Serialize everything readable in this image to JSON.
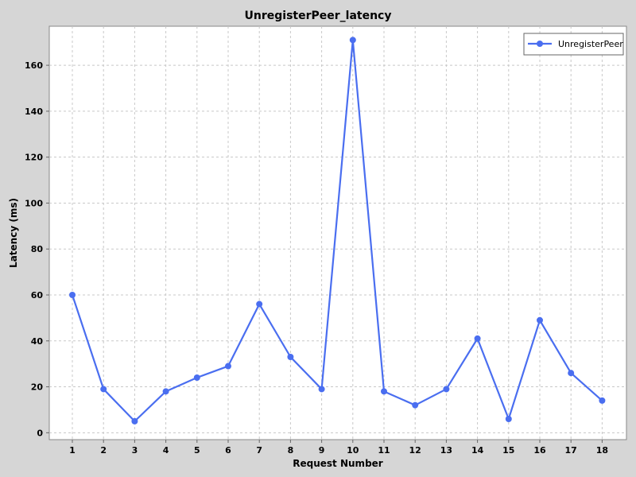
{
  "chart_data": {
    "type": "line",
    "title": "UnregisterPeer_latency",
    "xlabel": "Request Number",
    "ylabel": "Latency (ms)",
    "categories": [
      "1",
      "2",
      "3",
      "4",
      "5",
      "6",
      "7",
      "8",
      "9",
      "10",
      "11",
      "12",
      "13",
      "14",
      "15",
      "16",
      "17",
      "18"
    ],
    "series": [
      {
        "name": "UnregisterPeer",
        "color": "#4a6ef0",
        "values": [
          60,
          19,
          5,
          18,
          24,
          29,
          56,
          33,
          19,
          171,
          18,
          12,
          19,
          41,
          6,
          49,
          26,
          14
        ]
      }
    ],
    "ylim": [
      -3,
      177
    ],
    "yticks": [
      0,
      20,
      40,
      60,
      80,
      100,
      120,
      140,
      160
    ],
    "grid": true,
    "legend_position": "top-right"
  }
}
